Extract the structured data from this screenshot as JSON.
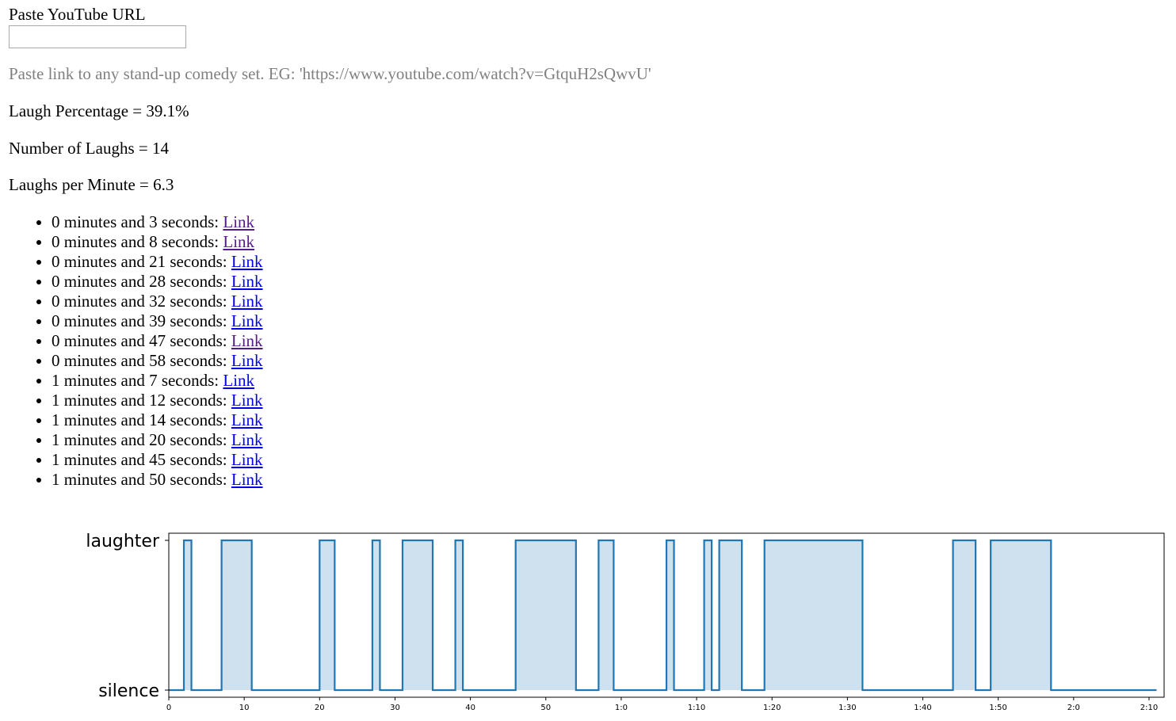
{
  "url_label": "Paste YouTube URL",
  "url_input": {
    "value": "",
    "placeholder": ""
  },
  "hint": "Paste link to any stand-up comedy set. EG: 'https://www.youtube.com/watch?v=GtquH2sQwvU'",
  "stats": {
    "laugh_percentage": "Laugh Percentage = 39.1%",
    "number_of_laughs": "Number of Laughs = 14",
    "laughs_per_minute": "Laughs per Minute = 6.3"
  },
  "colors": {
    "link": "#0000ee",
    "link_visited": "#551a8b",
    "hint": "#808080",
    "series": "#1f77b4",
    "series_fill": "#cfe1ef"
  },
  "laughs": [
    {
      "text": "0 minutes and 3 seconds: ",
      "link": "Link",
      "visited": true
    },
    {
      "text": "0 minutes and 8 seconds: ",
      "link": "Link",
      "visited": true
    },
    {
      "text": "0 minutes and 21 seconds: ",
      "link": "Link",
      "visited": false
    },
    {
      "text": "0 minutes and 28 seconds: ",
      "link": "Link",
      "visited": false
    },
    {
      "text": "0 minutes and 32 seconds: ",
      "link": "Link",
      "visited": false
    },
    {
      "text": "0 minutes and 39 seconds: ",
      "link": "Link",
      "visited": false
    },
    {
      "text": "0 minutes and 47 seconds: ",
      "link": "Link",
      "visited": true
    },
    {
      "text": "0 minutes and 58 seconds: ",
      "link": "Link",
      "visited": false
    },
    {
      "text": "1 minutes and 7 seconds: ",
      "link": "Link",
      "visited": false
    },
    {
      "text": "1 minutes and 12 seconds: ",
      "link": "Link",
      "visited": false
    },
    {
      "text": "1 minutes and 14 seconds: ",
      "link": "Link",
      "visited": false
    },
    {
      "text": "1 minutes and 20 seconds: ",
      "link": "Link",
      "visited": false
    },
    {
      "text": "1 minutes and 45 seconds: ",
      "link": "Link",
      "visited": false
    },
    {
      "text": "1 minutes and 50 seconds: ",
      "link": "Link",
      "visited": false
    }
  ],
  "chart_data": {
    "type": "area",
    "title": "",
    "xlabel": "",
    "ylabel": "",
    "xlim": [
      0,
      132
    ],
    "ylim": [
      0,
      1
    ],
    "y_tick_labels": [
      "silence",
      "laughter"
    ],
    "x_ticks": [
      0,
      10,
      20,
      30,
      40,
      50,
      60,
      70,
      80,
      90,
      100,
      110,
      120,
      130
    ],
    "x_tick_labels": [
      "0",
      "10",
      "20",
      "30",
      "40",
      "50",
      "1:0",
      "1:10",
      "1:20",
      "1:30",
      "1:40",
      "1:50",
      "2:0",
      "2:10"
    ],
    "grid": false,
    "legend": "none",
    "series": [
      {
        "x": [
          0,
          2,
          2,
          3,
          3,
          7,
          7,
          11,
          11,
          20,
          20,
          22,
          22,
          27,
          27,
          28,
          28,
          31,
          31,
          35,
          35,
          38,
          38,
          39,
          39,
          46,
          46,
          54,
          54,
          57,
          57,
          59,
          59,
          66,
          66,
          67,
          67,
          71,
          71,
          72,
          72,
          73,
          73,
          76,
          76,
          79,
          79,
          92,
          92,
          104,
          104,
          107,
          107,
          109,
          109,
          117,
          117,
          131
        ],
        "y": [
          0,
          0,
          1,
          1,
          0,
          0,
          1,
          1,
          0,
          0,
          1,
          1,
          0,
          0,
          1,
          1,
          0,
          0,
          1,
          1,
          0,
          0,
          1,
          1,
          0,
          0,
          1,
          1,
          0,
          0,
          1,
          1,
          0,
          0,
          1,
          1,
          0,
          0,
          1,
          1,
          0,
          0,
          1,
          1,
          0,
          0,
          1,
          1,
          0,
          0,
          1,
          1,
          0,
          0,
          1,
          1,
          0,
          0
        ]
      }
    ]
  }
}
